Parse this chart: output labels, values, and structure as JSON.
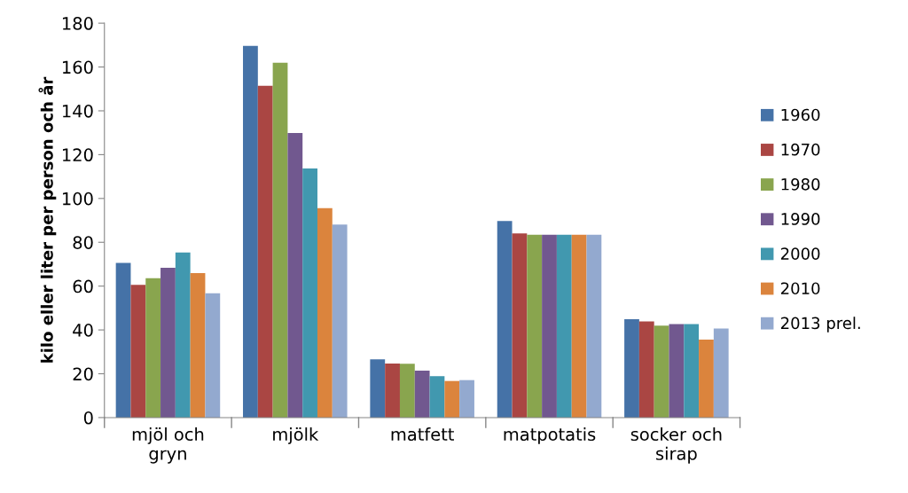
{
  "chart_data": {
    "type": "bar",
    "ylabel": "kilo eller liter per person och år",
    "categories": [
      "mjöl och\ngryn",
      "mjölk",
      "matfett",
      "matpotatis",
      "socker och\nsirap"
    ],
    "series": [
      {
        "name": "1960",
        "color": "#4572a7",
        "values": [
          70.6,
          169.6,
          26.6,
          89.7,
          44.9
        ]
      },
      {
        "name": "1970",
        "color": "#aa4643",
        "values": [
          60.6,
          151.4,
          24.7,
          84.0,
          43.9
        ]
      },
      {
        "name": "1980",
        "color": "#89a54e",
        "values": [
          63.6,
          161.9,
          24.6,
          83.4,
          42.0
        ]
      },
      {
        "name": "1990",
        "color": "#71588f",
        "values": [
          68.4,
          129.9,
          21.4,
          83.4,
          42.7
        ]
      },
      {
        "name": "2000",
        "color": "#4198af",
        "values": [
          75.3,
          113.7,
          18.9,
          83.4,
          42.7
        ]
      },
      {
        "name": "2010",
        "color": "#db843d",
        "values": [
          65.9,
          95.6,
          16.7,
          83.4,
          35.6
        ]
      },
      {
        "name": "2013 prel.",
        "color": "#93a9cf",
        "values": [
          56.7,
          88.1,
          17.1,
          83.4,
          40.6
        ]
      }
    ],
    "ylim": [
      0,
      180
    ],
    "yticks": [
      0,
      20,
      40,
      60,
      80,
      100,
      120,
      140,
      160,
      180
    ],
    "grid": false,
    "legend": "right"
  }
}
